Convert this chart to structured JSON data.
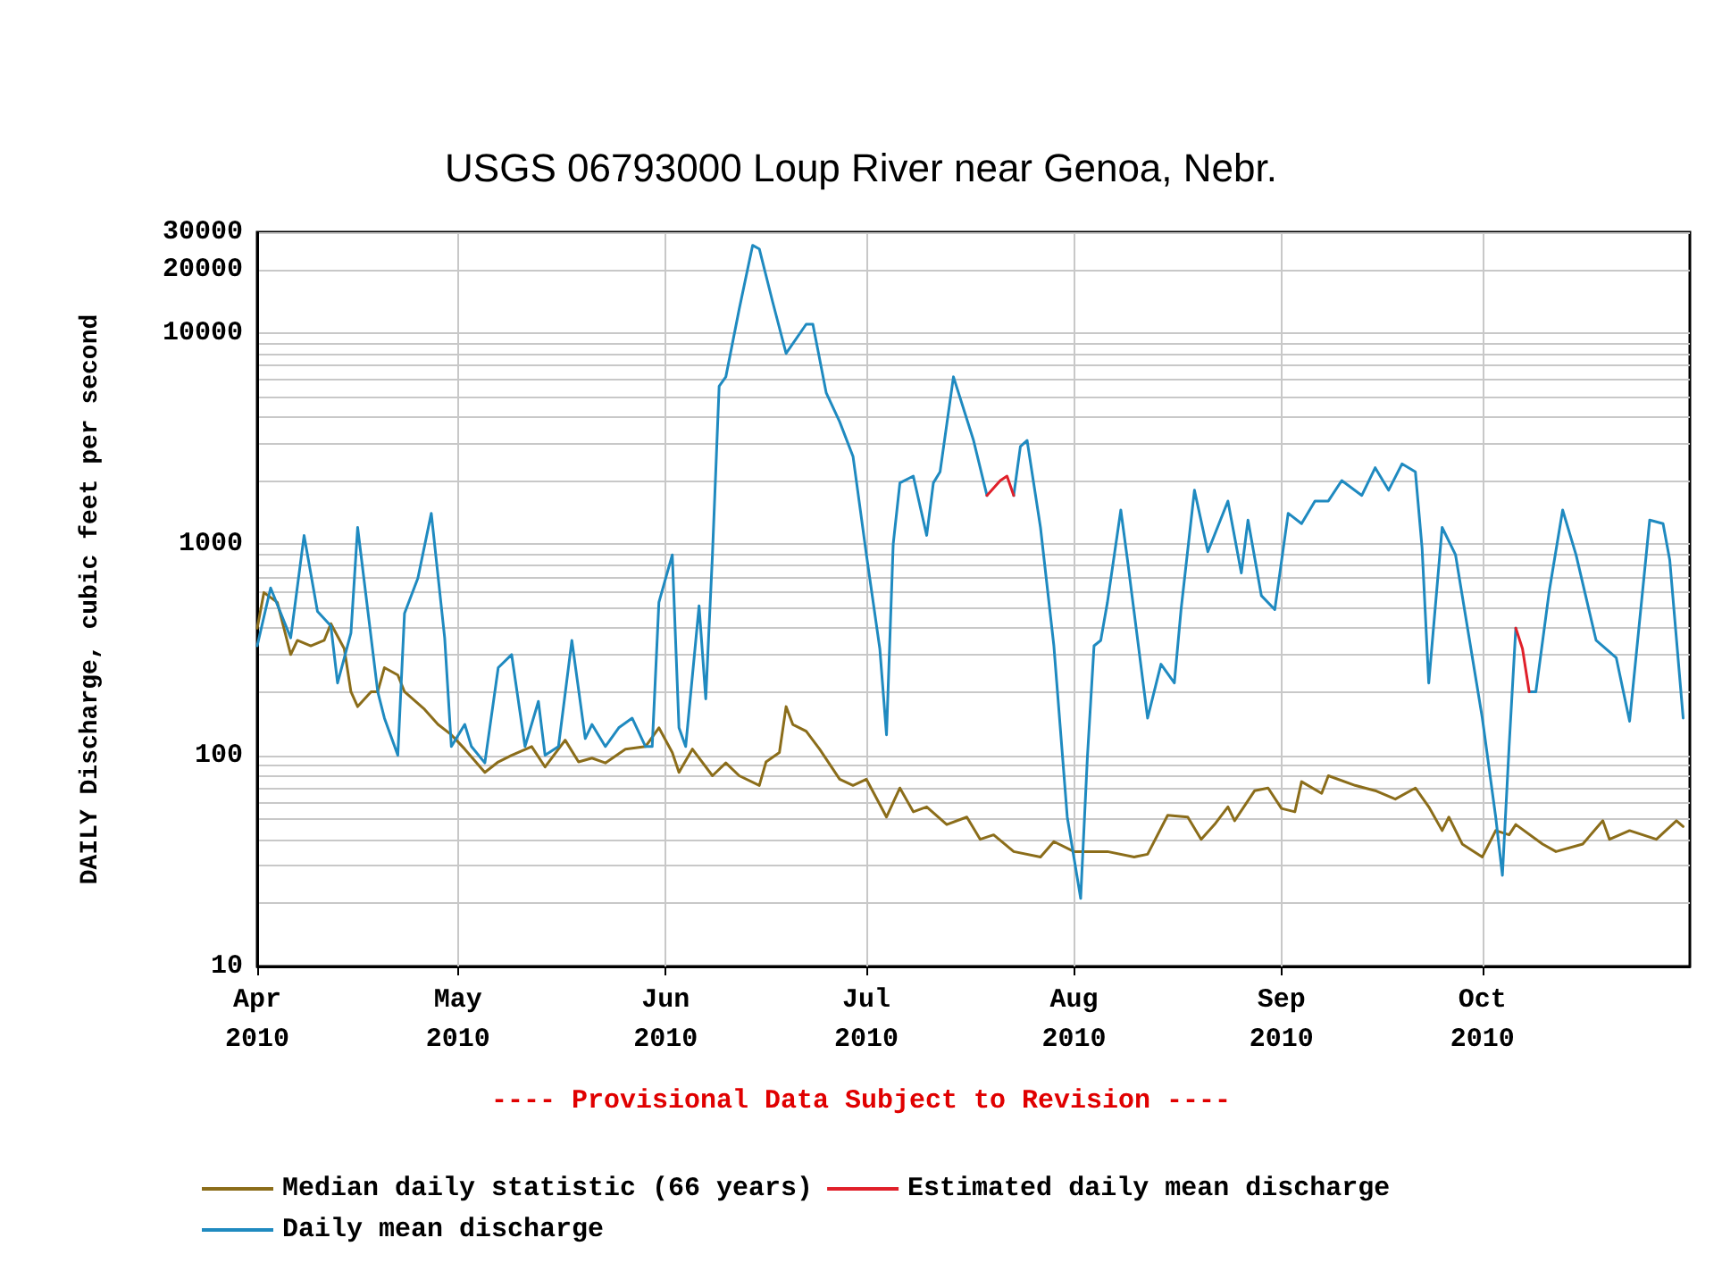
{
  "chart_data": {
    "type": "line",
    "title": "USGS 06793000 Loup River near Genoa, Nebr.",
    "ylabel": "DAILY Discharge, cubic feet per second",
    "annotations": [
      "---- Provisional Data Subject to Revision ----"
    ],
    "log": "y",
    "grid": true,
    "legend": "bottom",
    "marker": "none",
    "line_style": "solid",
    "xlim": [
      "2010-04-01",
      "2010-11-01"
    ],
    "xticks": [
      {
        "value": "2010-04-01",
        "label": "Apr\n2010"
      },
      {
        "value": "2010-05-01",
        "label": "May\n2010"
      },
      {
        "value": "2010-06-01",
        "label": "Jun\n2010"
      },
      {
        "value": "2010-07-01",
        "label": "Jul\n2010"
      },
      {
        "value": "2010-08-01",
        "label": "Aug\n2010"
      },
      {
        "value": "2010-09-01",
        "label": "Sep\n2010"
      },
      {
        "value": "2010-10-01",
        "label": "Oct\n2010"
      }
    ],
    "ylim": [
      10,
      30000
    ],
    "yticks": [
      10,
      {
        "value": 20,
        "label": null
      },
      {
        "value": 30,
        "label": null
      },
      {
        "value": 40,
        "label": null
      },
      {
        "value": 50,
        "label": null
      },
      {
        "value": 60,
        "label": null
      },
      {
        "value": 70,
        "label": null
      },
      {
        "value": 80,
        "label": null
      },
      {
        "value": 90,
        "label": null
      },
      100,
      {
        "value": 200,
        "label": null
      },
      {
        "value": 300,
        "label": null
      },
      {
        "value": 400,
        "label": null
      },
      {
        "value": 500,
        "label": null
      },
      {
        "value": 600,
        "label": null
      },
      {
        "value": 700,
        "label": null
      },
      {
        "value": 800,
        "label": null
      },
      {
        "value": 900,
        "label": null
      },
      1000,
      {
        "value": 2000,
        "label": null
      },
      {
        "value": 3000,
        "label": null
      },
      {
        "value": 4000,
        "label": null
      },
      {
        "value": 5000,
        "label": null
      },
      {
        "value": 6000,
        "label": null
      },
      {
        "value": 7000,
        "label": null
      },
      {
        "value": 8000,
        "label": null
      },
      {
        "value": 9000,
        "label": null
      },
      10000,
      20000,
      30000
    ],
    "series": [
      {
        "name": "Median daily statistic (66 years)",
        "color": "#8b6d1a",
        "x": [
          "2010-04-01",
          "2010-04-02",
          "2010-04-04",
          "2010-04-06",
          "2010-04-07",
          "2010-04-09",
          "2010-04-11",
          "2010-04-12",
          "2010-04-14",
          "2010-04-15",
          "2010-04-16",
          "2010-04-18",
          "2010-04-19",
          "2010-04-20",
          "2010-04-22",
          "2010-04-23",
          "2010-04-26",
          "2010-04-28",
          "2010-04-30",
          "2010-05-02",
          "2010-05-05",
          "2010-05-07",
          "2010-05-09",
          "2010-05-12",
          "2010-05-14",
          "2010-05-17",
          "2010-05-19",
          "2010-05-21",
          "2010-05-23",
          "2010-05-26",
          "2010-05-29",
          "2010-05-31",
          "2010-06-02",
          "2010-06-03",
          "2010-06-05",
          "2010-06-08",
          "2010-06-10",
          "2010-06-12",
          "2010-06-15",
          "2010-06-16",
          "2010-06-18",
          "2010-06-19",
          "2010-06-20",
          "2010-06-22",
          "2010-06-24",
          "2010-06-27",
          "2010-06-29",
          "2010-07-01",
          "2010-07-04",
          "2010-07-06",
          "2010-07-08",
          "2010-07-10",
          "2010-07-13",
          "2010-07-16",
          "2010-07-18",
          "2010-07-20",
          "2010-07-23",
          "2010-07-27",
          "2010-07-29",
          "2010-08-01",
          "2010-08-06",
          "2010-08-10",
          "2010-08-12",
          "2010-08-15",
          "2010-08-18",
          "2010-08-20",
          "2010-08-22",
          "2010-08-24",
          "2010-08-25",
          "2010-08-28",
          "2010-08-30",
          "2010-09-01",
          "2010-09-03",
          "2010-09-04",
          "2010-09-07",
          "2010-09-08",
          "2010-09-12",
          "2010-09-15",
          "2010-09-18",
          "2010-09-21",
          "2010-09-23",
          "2010-09-25",
          "2010-09-26",
          "2010-09-28",
          "2010-10-01",
          "2010-10-03",
          "2010-10-05",
          "2010-10-06",
          "2010-10-10",
          "2010-10-12",
          "2010-10-16",
          "2010-10-19",
          "2010-10-20",
          "2010-10-23",
          "2010-10-27",
          "2010-10-30",
          "2010-10-31"
        ],
        "values": [
          400,
          590,
          530,
          300,
          350,
          330,
          350,
          420,
          320,
          200,
          170,
          200,
          200,
          260,
          240,
          200,
          165,
          140,
          125,
          107,
          83,
          93,
          100,
          110,
          88,
          118,
          93,
          97,
          92,
          107,
          110,
          135,
          103,
          83,
          107,
          80,
          92,
          80,
          72,
          93,
          103,
          170,
          140,
          130,
          107,
          77,
          72,
          77,
          51,
          70,
          54,
          57,
          47,
          51,
          40,
          42,
          35,
          33,
          39,
          35,
          35,
          33,
          34,
          52,
          51,
          40,
          47,
          57,
          49,
          68,
          70,
          56,
          54,
          75,
          66,
          80,
          72,
          68,
          62,
          70,
          57,
          44,
          51,
          38,
          33,
          44,
          42,
          47,
          38,
          35,
          38,
          49,
          40,
          44,
          40,
          49,
          46
        ]
      },
      {
        "name": "Daily mean discharge",
        "color": "#1f8ac0",
        "x": [
          "2010-04-01",
          "2010-04-03",
          "2010-04-06",
          "2010-04-08",
          "2010-04-10",
          "2010-04-12",
          "2010-04-13",
          "2010-04-15",
          "2010-04-16",
          "2010-04-19",
          "2010-04-20",
          "2010-04-22",
          "2010-04-23",
          "2010-04-25",
          "2010-04-27",
          "2010-04-29",
          "2010-04-30",
          "2010-05-02",
          "2010-05-03",
          "2010-05-05",
          "2010-05-07",
          "2010-05-09",
          "2010-05-11",
          "2010-05-13",
          "2010-05-14",
          "2010-05-16",
          "2010-05-18",
          "2010-05-20",
          "2010-05-21",
          "2010-05-23",
          "2010-05-25",
          "2010-05-27",
          "2010-05-29",
          "2010-05-30",
          "2010-05-31",
          "2010-06-02",
          "2010-06-03",
          "2010-06-04",
          "2010-06-06",
          "2010-06-07",
          "2010-06-08",
          "2010-06-09",
          "2010-06-10",
          "2010-06-12",
          "2010-06-14",
          "2010-06-15",
          "2010-06-17",
          "2010-06-19",
          "2010-06-22",
          "2010-06-23",
          "2010-06-25",
          "2010-06-27",
          "2010-06-29",
          "2010-07-01",
          "2010-07-03",
          "2010-07-04",
          "2010-07-05",
          "2010-07-06",
          "2010-07-08",
          "2010-07-10",
          "2010-07-11",
          "2010-07-12",
          "2010-07-14",
          "2010-07-17",
          "2010-07-19",
          "2010-07-21",
          "2010-07-22",
          "2010-07-23",
          "2010-07-24",
          "2010-07-25",
          "2010-07-27",
          "2010-07-29",
          "2010-07-31",
          "2010-08-02",
          "2010-08-03",
          "2010-08-04",
          "2010-08-05",
          "2010-08-06",
          "2010-08-08",
          "2010-08-09",
          "2010-08-12",
          "2010-08-14",
          "2010-08-16",
          "2010-08-17",
          "2010-08-19",
          "2010-08-21",
          "2010-08-24",
          "2010-08-26",
          "2010-08-27",
          "2010-08-29",
          "2010-08-31",
          "2010-09-02",
          "2010-09-04",
          "2010-09-06",
          "2010-09-08",
          "2010-09-10",
          "2010-09-13",
          "2010-09-15",
          "2010-09-17",
          "2010-09-19",
          "2010-09-21",
          "2010-09-22",
          "2010-09-23",
          "2010-09-25",
          "2010-09-27",
          "2010-10-01",
          "2010-10-03",
          "2010-10-04",
          "2010-10-05",
          "2010-10-06",
          "2010-10-07",
          "2010-10-08",
          "2010-10-09",
          "2010-10-11",
          "2010-10-13",
          "2010-10-15",
          "2010-10-18",
          "2010-10-21",
          "2010-10-23",
          "2010-10-26",
          "2010-10-28",
          "2010-10-29",
          "2010-10-31"
        ],
        "values": [
          330,
          620,
          360,
          1100,
          480,
          410,
          220,
          380,
          1200,
          200,
          150,
          100,
          470,
          690,
          1400,
          360,
          110,
          140,
          110,
          92,
          260,
          300,
          110,
          180,
          100,
          110,
          350,
          120,
          140,
          110,
          135,
          150,
          110,
          110,
          530,
          890,
          135,
          110,
          510,
          185,
          890,
          5600,
          6200,
          13000,
          26000,
          25000,
          14000,
          8000,
          11000,
          11000,
          5200,
          3800,
          2600,
          890,
          320,
          125,
          1000,
          1950,
          2100,
          1100,
          1950,
          2200,
          6200,
          3100,
          1700,
          null,
          null,
          1700,
          2900,
          3100,
          1200,
          330,
          51,
          21,
          97,
          330,
          350,
          530,
          1450,
          840,
          150,
          270,
          220,
          490,
          1800,
          920,
          1600,
          730,
          1300,
          570,
          490,
          1400,
          1250,
          1600,
          1600,
          2000,
          1700,
          2300,
          1800,
          2400,
          2200,
          960,
          220,
          1200,
          890,
          150,
          51,
          27,
          110,
          400,
          null,
          200,
          200,
          600,
          1450,
          890,
          350,
          290,
          145,
          1300,
          1250,
          840,
          150
        ]
      },
      {
        "name": "Estimated daily mean discharge",
        "color": "#e0202a",
        "x": [
          "2010-07-19",
          "2010-07-21",
          "2010-07-22",
          "2010-07-23",
          "2010-08-01",
          "2010-10-06",
          "2010-10-07",
          "2010-10-08"
        ],
        "values": [
          1700,
          2000,
          2100,
          1700,
          null,
          400,
          320,
          200
        ]
      }
    ]
  }
}
